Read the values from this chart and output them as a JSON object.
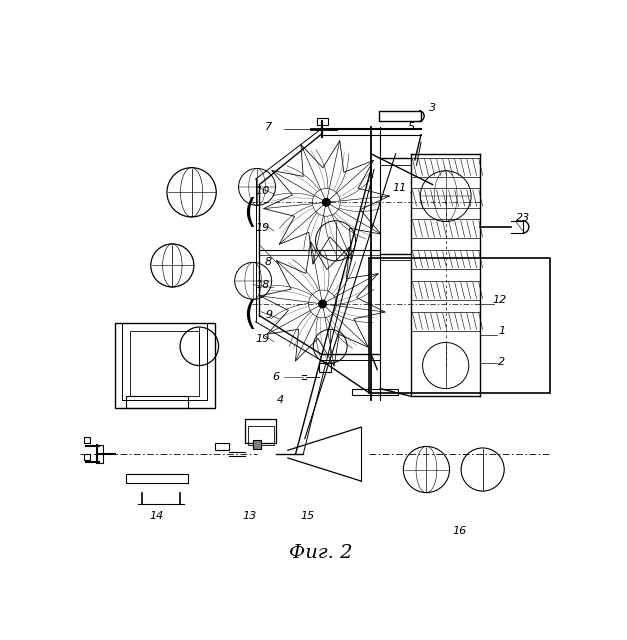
{
  "title": "Фиг. 2",
  "bg_color": "#ffffff",
  "line_color": "#000000",
  "fig_width": 6.27,
  "fig_height": 6.4,
  "dpi": 100
}
